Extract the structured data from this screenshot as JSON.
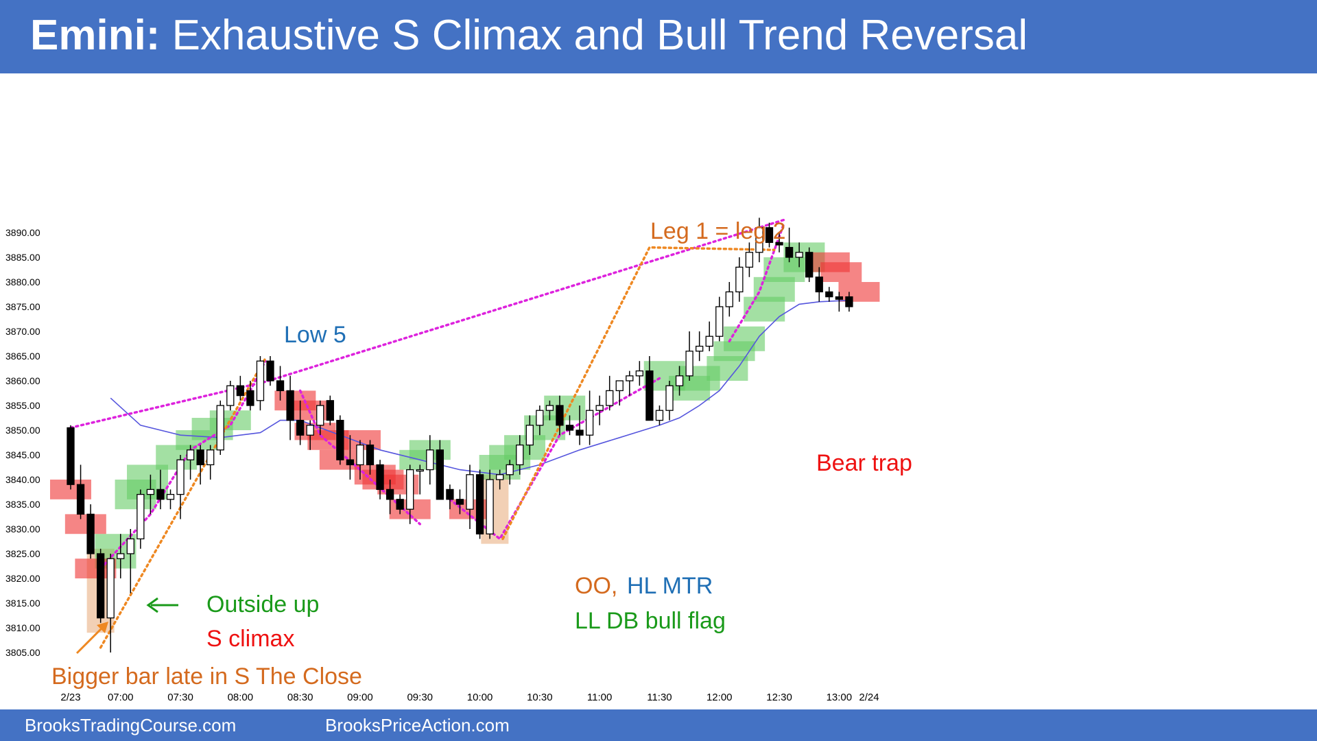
{
  "title": {
    "bold": "Emini:",
    "rest": " Exhaustive S Climax and Bull Trend Reversal"
  },
  "footer": {
    "left": "BrooksTradingCourse.com",
    "right": "BrooksPriceAction.com"
  },
  "colors": {
    "header": "#4472c4",
    "bull_box": "#66cc66",
    "bear_box": "#ee3333",
    "tan_box": "#f0c8a8",
    "ema": "#5555dd",
    "magenta": "#dd22dd",
    "orange": "#ee8822",
    "ann_orange": "#d46a1e",
    "ann_blue": "#1f6fb5",
    "ann_green": "#1a9a1a",
    "ann_red": "#ee1111"
  },
  "chart_data": {
    "type": "candlestick",
    "ylim": [
      3800,
      3897
    ],
    "y_ticks": [
      "3890.00",
      "3885.00",
      "3880.00",
      "3875.00",
      "3870.00",
      "3865.00",
      "3860.00",
      "3855.00",
      "3850.00",
      "3845.00",
      "3840.00",
      "3835.00",
      "3830.00",
      "3825.00",
      "3820.00",
      "3815.00",
      "3810.00",
      "3805.00"
    ],
    "x_ticks": [
      {
        "bar": 1,
        "label": "2/23"
      },
      {
        "bar": 6,
        "label": "07:00"
      },
      {
        "bar": 12,
        "label": "07:30"
      },
      {
        "bar": 18,
        "label": "08:00"
      },
      {
        "bar": 24,
        "label": "08:30"
      },
      {
        "bar": 30,
        "label": "09:00"
      },
      {
        "bar": 36,
        "label": "09:30"
      },
      {
        "bar": 42,
        "label": "10:00"
      },
      {
        "bar": 48,
        "label": "10:30"
      },
      {
        "bar": 54,
        "label": "11:00"
      },
      {
        "bar": 60,
        "label": "11:30"
      },
      {
        "bar": 66,
        "label": "12:00"
      },
      {
        "bar": 72,
        "label": "12:30"
      },
      {
        "bar": 78,
        "label": "13:00"
      },
      {
        "bar": 81,
        "label": "2/24"
      }
    ],
    "bars": [
      [
        3850.5,
        3851,
        3838,
        3839
      ],
      [
        3839,
        3843,
        3832,
        3833
      ],
      [
        3833,
        3835,
        3824,
        3825
      ],
      [
        3825,
        3826,
        3811,
        3812
      ],
      [
        3812,
        3825,
        3805,
        3824
      ],
      [
        3824,
        3829,
        3820,
        3825
      ],
      [
        3825,
        3830,
        3817,
        3828
      ],
      [
        3828,
        3838,
        3826,
        3837
      ],
      [
        3837,
        3841,
        3833,
        3838
      ],
      [
        3838,
        3842,
        3834,
        3836
      ],
      [
        3836,
        3838,
        3834,
        3837
      ],
      [
        3837,
        3845,
        3832,
        3844
      ],
      [
        3844,
        3847,
        3840,
        3846
      ],
      [
        3846,
        3847,
        3839,
        3843
      ],
      [
        3843,
        3847,
        3840,
        3846
      ],
      [
        3846,
        3856,
        3845,
        3855
      ],
      [
        3855,
        3860,
        3854,
        3859
      ],
      [
        3859,
        3861,
        3856,
        3857
      ],
      [
        3858,
        3860,
        3854,
        3855
      ],
      [
        3856,
        3865,
        3854,
        3864
      ],
      [
        3864,
        3865,
        3859,
        3860
      ],
      [
        3860,
        3863,
        3856,
        3858
      ],
      [
        3858,
        3861,
        3848,
        3852
      ],
      [
        3852,
        3856,
        3847,
        3849
      ],
      [
        3849,
        3852,
        3846,
        3851
      ],
      [
        3851,
        3856,
        3849,
        3855
      ],
      [
        3856,
        3857,
        3851,
        3852
      ],
      [
        3852,
        3853,
        3843,
        3844
      ],
      [
        3844,
        3849,
        3840,
        3843
      ],
      [
        3843,
        3848,
        3840,
        3847
      ],
      [
        3847,
        3848,
        3841,
        3843
      ],
      [
        3843,
        3844,
        3836,
        3838
      ],
      [
        3838,
        3840,
        3833,
        3836
      ],
      [
        3836,
        3837,
        3833,
        3834
      ],
      [
        3834,
        3843,
        3831,
        3842
      ],
      [
        3842,
        3843,
        3837,
        3842
      ],
      [
        3842,
        3849,
        3839,
        3846
      ],
      [
        3846,
        3848,
        3841,
        3836
      ],
      [
        3838,
        3839,
        3834,
        3836
      ],
      [
        3836,
        3838,
        3833,
        3835
      ],
      [
        3834,
        3843,
        3830,
        3841
      ],
      [
        3841,
        3842,
        3828,
        3829
      ],
      [
        3829,
        3842,
        3828,
        3840
      ],
      [
        3840,
        3842,
        3838,
        3841
      ],
      [
        3841,
        3844,
        3839,
        3843
      ],
      [
        3843,
        3849,
        3841,
        3847
      ],
      [
        3847,
        3853,
        3845,
        3851
      ],
      [
        3851,
        3855,
        3849,
        3854
      ],
      [
        3854,
        3856,
        3852,
        3855
      ],
      [
        3855,
        3857,
        3849,
        3851
      ],
      [
        3851,
        3853,
        3849,
        3850
      ],
      [
        3850,
        3855,
        3847,
        3849
      ],
      [
        3849,
        3858,
        3847,
        3854
      ],
      [
        3854,
        3857,
        3851,
        3855
      ],
      [
        3855,
        3861,
        3854,
        3858
      ],
      [
        3858,
        3860,
        3855,
        3860
      ],
      [
        3860,
        3862,
        3857,
        3861
      ],
      [
        3861,
        3864,
        3859,
        3862
      ],
      [
        3862,
        3865,
        3856,
        3852
      ],
      [
        3852,
        3855,
        3851,
        3854
      ],
      [
        3854,
        3860,
        3852,
        3859
      ],
      [
        3859,
        3863,
        3857,
        3861
      ],
      [
        3861,
        3870,
        3860,
        3866
      ],
      [
        3866,
        3870,
        3864,
        3867
      ],
      [
        3867,
        3872,
        3866,
        3869
      ],
      [
        3869,
        3877,
        3868,
        3875
      ],
      [
        3875,
        3880,
        3873,
        3878
      ],
      [
        3878,
        3885,
        3876,
        3883
      ],
      [
        3883,
        3888,
        3881,
        3886
      ],
      [
        3886,
        3893,
        3884,
        3891
      ],
      [
        3891,
        3892,
        3887,
        3888
      ],
      [
        3888,
        3890,
        3886,
        3887.5
      ],
      [
        3887,
        3891,
        3884,
        3885
      ],
      [
        3885,
        3888,
        3883,
        3886
      ],
      [
        3886,
        3887,
        3880,
        3881
      ],
      [
        3881,
        3883,
        3876,
        3878
      ],
      [
        3878,
        3879,
        3876,
        3877
      ],
      [
        3877,
        3878,
        3874,
        3876.5
      ],
      [
        3877,
        3878,
        3874,
        3875
      ]
    ],
    "ema": [
      [
        5,
        3856.5
      ],
      [
        8,
        3851
      ],
      [
        12,
        3849
      ],
      [
        16,
        3848.5
      ],
      [
        20,
        3849.5
      ],
      [
        22,
        3852
      ],
      [
        24,
        3852
      ],
      [
        28,
        3849
      ],
      [
        32,
        3846
      ],
      [
        36,
        3844
      ],
      [
        40,
        3842
      ],
      [
        42,
        3841.5
      ],
      [
        44,
        3841
      ],
      [
        48,
        3843
      ],
      [
        52,
        3846
      ],
      [
        56,
        3848.5
      ],
      [
        60,
        3851
      ],
      [
        62,
        3852.5
      ],
      [
        64,
        3855
      ],
      [
        66,
        3858
      ],
      [
        68,
        3863
      ],
      [
        70,
        3869
      ],
      [
        72,
        3873
      ],
      [
        74,
        3875.5
      ],
      [
        76,
        3876
      ],
      [
        79,
        3876.3
      ]
    ],
    "bull_boxes": [
      [
        5.5,
        3822,
        3829
      ],
      [
        7.5,
        3834,
        3840
      ],
      [
        8.7,
        3836,
        3843
      ],
      [
        11.6,
        3842,
        3847
      ],
      [
        13.6,
        3846,
        3850
      ],
      [
        15.2,
        3848,
        3852.5
      ],
      [
        17,
        3850,
        3854
      ],
      [
        36,
        3842,
        3846
      ],
      [
        37,
        3844,
        3848
      ],
      [
        44,
        3840,
        3845
      ],
      [
        45,
        3842,
        3847
      ],
      [
        46.5,
        3844,
        3849
      ],
      [
        48.5,
        3848,
        3853
      ],
      [
        50.5,
        3852,
        3857
      ],
      [
        60.5,
        3858,
        3864
      ],
      [
        63,
        3856,
        3861
      ],
      [
        64,
        3858,
        3863
      ],
      [
        66.8,
        3860,
        3865
      ],
      [
        67.5,
        3864,
        3868
      ],
      [
        68.5,
        3866,
        3871
      ],
      [
        70.5,
        3872,
        3877
      ],
      [
        71.5,
        3876,
        3881
      ],
      [
        72.5,
        3880,
        3885
      ],
      [
        74.5,
        3882,
        3888
      ]
    ],
    "bear_boxes": [
      [
        1,
        3836,
        3840
      ],
      [
        2.5,
        3829,
        3833
      ],
      [
        3.5,
        3820,
        3824
      ],
      [
        23.5,
        3854,
        3858
      ],
      [
        24.7,
        3852,
        3856
      ],
      [
        25.5,
        3848,
        3851.5
      ],
      [
        26.8,
        3846,
        3850
      ],
      [
        28,
        3842,
        3846
      ],
      [
        30,
        3846,
        3850
      ],
      [
        31.5,
        3839,
        3843
      ],
      [
        32.3,
        3838,
        3842
      ],
      [
        33.8,
        3837,
        3841
      ],
      [
        35,
        3832,
        3836
      ],
      [
        41,
        3832,
        3836
      ],
      [
        77,
        3882,
        3886
      ],
      [
        78.2,
        3880,
        3884
      ],
      [
        80,
        3876,
        3880
      ]
    ],
    "tan_boxes": [
      [
        4,
        3809,
        3826
      ],
      [
        43.5,
        3827,
        3841
      ]
    ],
    "magenta_lines": [
      [
        [
          1,
          3850.5
        ],
        [
          20.5,
          3859.8
        ],
        [
          72.5,
          3892.6
        ]
      ],
      [
        [
          4,
          3822
        ],
        [
          9,
          3833
        ],
        [
          13,
          3846
        ],
        [
          17,
          3851
        ],
        [
          19,
          3858
        ],
        [
          20.5,
          3864
        ]
      ],
      [
        [
          24,
          3858
        ],
        [
          26,
          3849
        ],
        [
          30,
          3842
        ],
        [
          36,
          3831
        ]
      ],
      [
        [
          39,
          3836
        ],
        [
          44,
          3828
        ],
        [
          50,
          3849
        ],
        [
          60,
          3860.5
        ]
      ],
      [
        [
          67,
          3868
        ],
        [
          70,
          3878
        ],
        [
          72.5,
          3892
        ]
      ]
    ],
    "orange_lines": [
      [
        [
          4,
          3806
        ],
        [
          20.5,
          3864.5
        ]
      ],
      [
        [
          44.3,
          3828
        ],
        [
          59,
          3887
        ],
        [
          71.5,
          3886.5
        ]
      ]
    ],
    "annotations": {
      "low5": "Low 5",
      "leg": "Leg 1 = leg 2",
      "outside_up": "Outside up",
      "s_climax": "S climax",
      "bigger_bar": "Bigger bar late in S The Close",
      "oo": "OO,",
      "hl_mtr": "HL MTR",
      "ll_db": "LL DB bull flag",
      "bear_trap": "Bear trap"
    }
  }
}
